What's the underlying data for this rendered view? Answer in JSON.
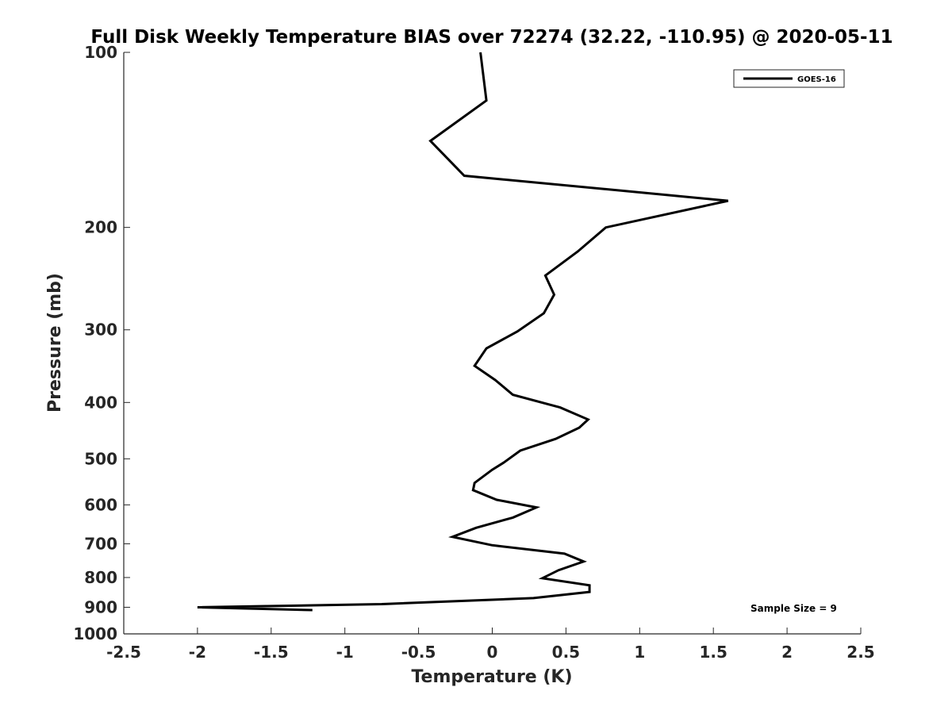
{
  "chart_data": {
    "type": "line",
    "title": "Full Disk Weekly Temperature BIAS over 72274 (32.22, -110.95) @ 2020-05-11",
    "xlabel": "Temperature (K)",
    "ylabel": "Pressure (mb)",
    "xlim": [
      -2.5,
      2.5
    ],
    "ylim": [
      1000,
      100
    ],
    "yscale": "log",
    "xticks": [
      -2.5,
      -2,
      -1.5,
      -1,
      -0.5,
      0,
      0.5,
      1,
      1.5,
      2,
      2.5
    ],
    "xtick_labels": [
      "-2.5",
      "-2",
      "-1.5",
      "-1",
      "-0.5",
      "0",
      "0.5",
      "1",
      "1.5",
      "2",
      "2.5"
    ],
    "yticks": [
      100,
      200,
      300,
      400,
      500,
      600,
      700,
      800,
      900,
      1000
    ],
    "ytick_labels": [
      "100",
      "200",
      "300",
      "400",
      "500",
      "600",
      "700",
      "800",
      "900",
      "1000"
    ],
    "grid": false,
    "legend_position": "top-right",
    "annotation": "Sample Size = 9",
    "series": [
      {
        "name": "GOES-16",
        "color": "#000000",
        "points": [
          {
            "x": -0.08,
            "y": 100
          },
          {
            "x": -0.04,
            "y": 121
          },
          {
            "x": -0.42,
            "y": 142
          },
          {
            "x": -0.19,
            "y": 163
          },
          {
            "x": 1.6,
            "y": 180
          },
          {
            "x": 0.77,
            "y": 200
          },
          {
            "x": 0.58,
            "y": 220
          },
          {
            "x": 0.36,
            "y": 242
          },
          {
            "x": 0.42,
            "y": 261
          },
          {
            "x": 0.35,
            "y": 281
          },
          {
            "x": 0.17,
            "y": 302
          },
          {
            "x": -0.04,
            "y": 323
          },
          {
            "x": -0.12,
            "y": 346
          },
          {
            "x": 0.02,
            "y": 366
          },
          {
            "x": 0.14,
            "y": 388
          },
          {
            "x": 0.46,
            "y": 408
          },
          {
            "x": 0.65,
            "y": 428
          },
          {
            "x": 0.59,
            "y": 442
          },
          {
            "x": 0.43,
            "y": 462
          },
          {
            "x": 0.19,
            "y": 484
          },
          {
            "x": 0.08,
            "y": 507
          },
          {
            "x": 0.0,
            "y": 522
          },
          {
            "x": -0.12,
            "y": 550
          },
          {
            "x": -0.13,
            "y": 566
          },
          {
            "x": 0.03,
            "y": 588
          },
          {
            "x": 0.3,
            "y": 606
          },
          {
            "x": 0.14,
            "y": 631
          },
          {
            "x": -0.11,
            "y": 657
          },
          {
            "x": -0.27,
            "y": 681
          },
          {
            "x": 0.0,
            "y": 704
          },
          {
            "x": 0.49,
            "y": 728
          },
          {
            "x": 0.62,
            "y": 751
          },
          {
            "x": 0.45,
            "y": 777
          },
          {
            "x": 0.34,
            "y": 802
          },
          {
            "x": 0.66,
            "y": 825
          },
          {
            "x": 0.66,
            "y": 847
          },
          {
            "x": 0.28,
            "y": 868
          },
          {
            "x": -0.75,
            "y": 889
          },
          {
            "x": -2.0,
            "y": 900
          },
          {
            "x": -1.22,
            "y": 910
          }
        ]
      }
    ]
  }
}
